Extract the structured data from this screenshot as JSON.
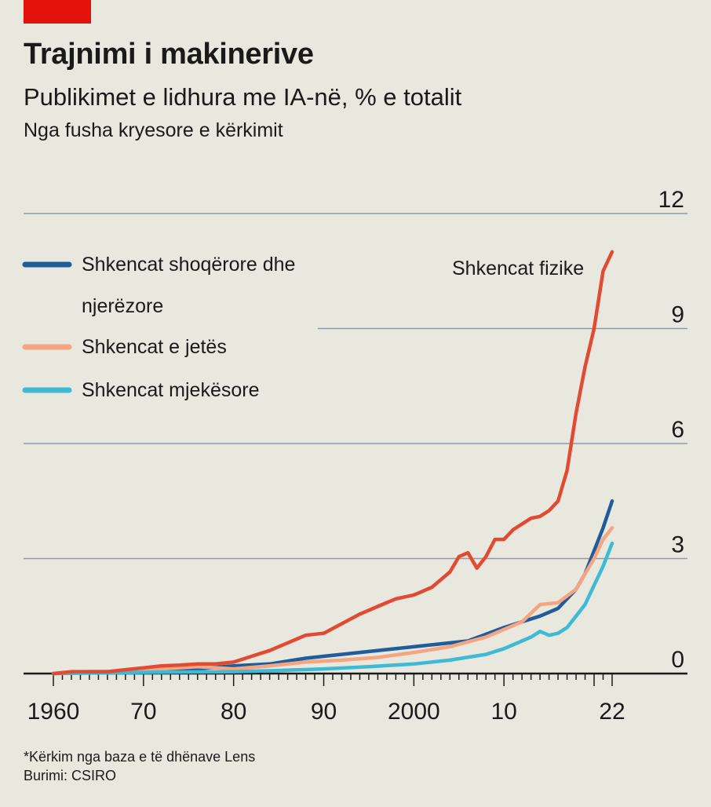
{
  "header": {
    "title": "Trajnimi i makinerive",
    "subtitle": "Publikimet e lidhura me IA-në, % e totalit",
    "subsubtitle": "Nga fusha kryesore e kërkimit"
  },
  "footer": {
    "note": "*Kërkim nga baza e të dhënave Lens",
    "source": "Burimi: CSIRO"
  },
  "colors": {
    "background": "#e9e8df",
    "brand_red": "#e3120b",
    "grid": "#8e9aa6"
  },
  "chart_data": {
    "type": "line",
    "title": "Trajnimi i makinerive",
    "subtitle": "Publikimet e lidhura me IA-në, % e totalit",
    "xlabel": "",
    "ylabel": "",
    "xlim": [
      1960,
      2022
    ],
    "ylim": [
      0,
      12
    ],
    "y_ticks": [
      0,
      3,
      6,
      9,
      12
    ],
    "x_ticks": [
      1960,
      1970,
      1980,
      1990,
      2000,
      2010,
      2022
    ],
    "x_tick_labels": [
      "1960",
      "70",
      "80",
      "90",
      "2000",
      "10",
      "22"
    ],
    "grid": true,
    "legend_position": "top-left",
    "annotation": "Shkencat fizike",
    "series": [
      {
        "name": "Shkencat fizike",
        "color": "#e24a33",
        "in_legend": false,
        "x": [
          1960,
          1962,
          1964,
          1966,
          1968,
          1970,
          1972,
          1974,
          1976,
          1978,
          1980,
          1982,
          1984,
          1986,
          1988,
          1990,
          1992,
          1994,
          1996,
          1998,
          2000,
          2002,
          2004,
          2005,
          2006,
          2007,
          2008,
          2009,
          2010,
          2011,
          2012,
          2013,
          2014,
          2015,
          2016,
          2017,
          2018,
          2019,
          2020,
          2021,
          2022
        ],
        "y": [
          0.0,
          0.05,
          0.05,
          0.05,
          0.1,
          0.15,
          0.2,
          0.22,
          0.25,
          0.25,
          0.3,
          0.45,
          0.6,
          0.8,
          1.0,
          1.05,
          1.3,
          1.55,
          1.75,
          1.95,
          2.05,
          2.25,
          2.65,
          3.05,
          3.15,
          2.75,
          3.05,
          3.5,
          3.5,
          3.75,
          3.9,
          4.05,
          4.1,
          4.25,
          4.5,
          5.3,
          6.8,
          8.0,
          9.0,
          10.5,
          11.0
        ]
      },
      {
        "name": "Shkencat shoqërore dhe njerëzore",
        "color": "#1f5c99",
        "in_legend": true,
        "x": [
          1960,
          1964,
          1968,
          1972,
          1976,
          1980,
          1984,
          1988,
          1990,
          1994,
          1998,
          2002,
          2006,
          2010,
          2014,
          2016,
          2018,
          2019,
          2020,
          2021,
          2022
        ],
        "y": [
          0.0,
          0.05,
          0.05,
          0.1,
          0.12,
          0.2,
          0.25,
          0.4,
          0.45,
          0.55,
          0.65,
          0.75,
          0.85,
          1.2,
          1.5,
          1.7,
          2.2,
          2.6,
          3.2,
          3.8,
          4.5
        ]
      },
      {
        "name": "Shkencat e jetës",
        "color": "#f4a582",
        "in_legend": true,
        "x": [
          1960,
          1968,
          1972,
          1976,
          1980,
          1984,
          1988,
          1992,
          1996,
          2000,
          2004,
          2008,
          2012,
          2014,
          2016,
          2018,
          2020,
          2021,
          2022
        ],
        "y": [
          0.0,
          0.05,
          0.12,
          0.18,
          0.12,
          0.2,
          0.3,
          0.35,
          0.42,
          0.55,
          0.7,
          0.95,
          1.35,
          1.8,
          1.85,
          2.2,
          3.0,
          3.5,
          3.8
        ]
      },
      {
        "name": "Shkencat mjekësore",
        "color": "#3fbad4",
        "in_legend": true,
        "x": [
          1960,
          1970,
          1980,
          1985,
          1990,
          1995,
          2000,
          2004,
          2008,
          2010,
          2012,
          2013,
          2014,
          2015,
          2016,
          2017,
          2018,
          2019,
          2020,
          2021,
          2022
        ],
        "y": [
          0.0,
          0.03,
          0.05,
          0.08,
          0.12,
          0.18,
          0.25,
          0.35,
          0.5,
          0.65,
          0.85,
          0.95,
          1.1,
          1.0,
          1.05,
          1.2,
          1.5,
          1.8,
          2.3,
          2.8,
          3.4
        ]
      }
    ]
  }
}
